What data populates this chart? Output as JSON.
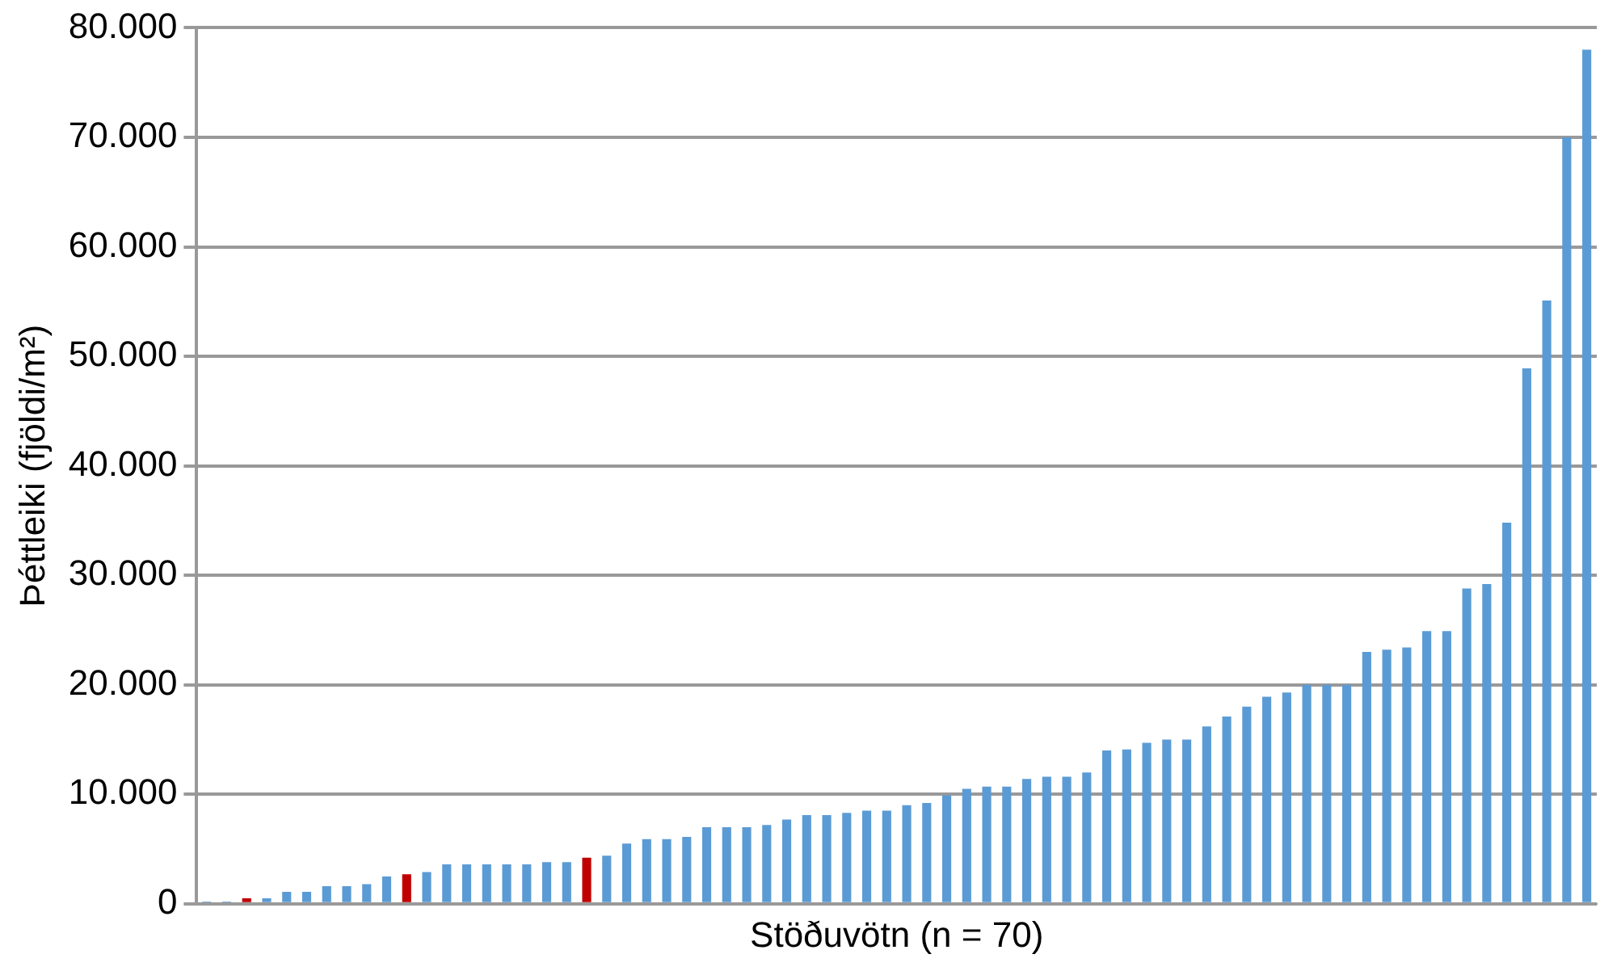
{
  "chart_data": {
    "type": "bar",
    "xlabel": "Stöðuvötn (n = 70)",
    "ylabel": "Þéttleiki (fjöldi/m²)",
    "categories": [
      null,
      null,
      null,
      null,
      null,
      null,
      null,
      null,
      null,
      null,
      null,
      null,
      null,
      null,
      null,
      null,
      null,
      null,
      null,
      null,
      null,
      null,
      null,
      null,
      null,
      null,
      null,
      null,
      null,
      null,
      null,
      null,
      null,
      null,
      null,
      null,
      null,
      null,
      null,
      null,
      null,
      null,
      null,
      null,
      null,
      null,
      null,
      null,
      null,
      null,
      null,
      null,
      null,
      null,
      null,
      null,
      null,
      null,
      null,
      null,
      null,
      null,
      null,
      null,
      null,
      null,
      null,
      null,
      null,
      null
    ],
    "values": [
      200,
      200,
      500,
      500,
      1100,
      1100,
      1600,
      1600,
      1800,
      2500,
      2700,
      2900,
      3600,
      3600,
      3600,
      3600,
      3600,
      3800,
      3800,
      4200,
      4400,
      5500,
      5900,
      5900,
      6100,
      7000,
      7000,
      7000,
      7200,
      7700,
      8100,
      8100,
      8300,
      8500,
      8500,
      9000,
      9200,
      9900,
      10500,
      10700,
      10700,
      11400,
      11600,
      11600,
      12000,
      14000,
      14100,
      14700,
      15000,
      15000,
      16200,
      17100,
      18000,
      18900,
      19300,
      20000,
      20000,
      20000,
      23000,
      23200,
      23400,
      24900,
      24900,
      28800,
      29200,
      34800,
      48900,
      55100,
      70000,
      78000
    ],
    "colors": [
      "#5b9bd5",
      "#5b9bd5",
      "#c00000",
      "#5b9bd5",
      "#5b9bd5",
      "#5b9bd5",
      "#5b9bd5",
      "#5b9bd5",
      "#5b9bd5",
      "#5b9bd5",
      "#c00000",
      "#5b9bd5",
      "#5b9bd5",
      "#5b9bd5",
      "#5b9bd5",
      "#5b9bd5",
      "#5b9bd5",
      "#5b9bd5",
      "#5b9bd5",
      "#c00000",
      "#5b9bd5",
      "#5b9bd5",
      "#5b9bd5",
      "#5b9bd5",
      "#5b9bd5",
      "#5b9bd5",
      "#5b9bd5",
      "#5b9bd5",
      "#5b9bd5",
      "#5b9bd5",
      "#5b9bd5",
      "#5b9bd5",
      "#5b9bd5",
      "#5b9bd5",
      "#5b9bd5",
      "#5b9bd5",
      "#5b9bd5",
      "#5b9bd5",
      "#5b9bd5",
      "#5b9bd5",
      "#5b9bd5",
      "#5b9bd5",
      "#5b9bd5",
      "#5b9bd5",
      "#5b9bd5",
      "#5b9bd5",
      "#5b9bd5",
      "#5b9bd5",
      "#5b9bd5",
      "#5b9bd5",
      "#5b9bd5",
      "#5b9bd5",
      "#5b9bd5",
      "#5b9bd5",
      "#5b9bd5",
      "#5b9bd5",
      "#5b9bd5",
      "#5b9bd5",
      "#5b9bd5",
      "#5b9bd5",
      "#5b9bd5",
      "#5b9bd5",
      "#5b9bd5",
      "#5b9bd5",
      "#5b9bd5",
      "#5b9bd5",
      "#5b9bd5",
      "#5b9bd5",
      "#5b9bd5",
      "#5b9bd5"
    ],
    "ylim": [
      0,
      80000
    ],
    "yticks": [
      {
        "value": 0,
        "label": "0"
      },
      {
        "value": 10000,
        "label": "10.000"
      },
      {
        "value": 20000,
        "label": "20.000"
      },
      {
        "value": 30000,
        "label": "30.000"
      },
      {
        "value": 40000,
        "label": "40.000"
      },
      {
        "value": 50000,
        "label": "50.000"
      },
      {
        "value": 60000,
        "label": "60.000"
      },
      {
        "value": 70000,
        "label": "70.000"
      },
      {
        "value": 80000,
        "label": "80.000"
      }
    ],
    "grid": "y",
    "legend": false
  }
}
